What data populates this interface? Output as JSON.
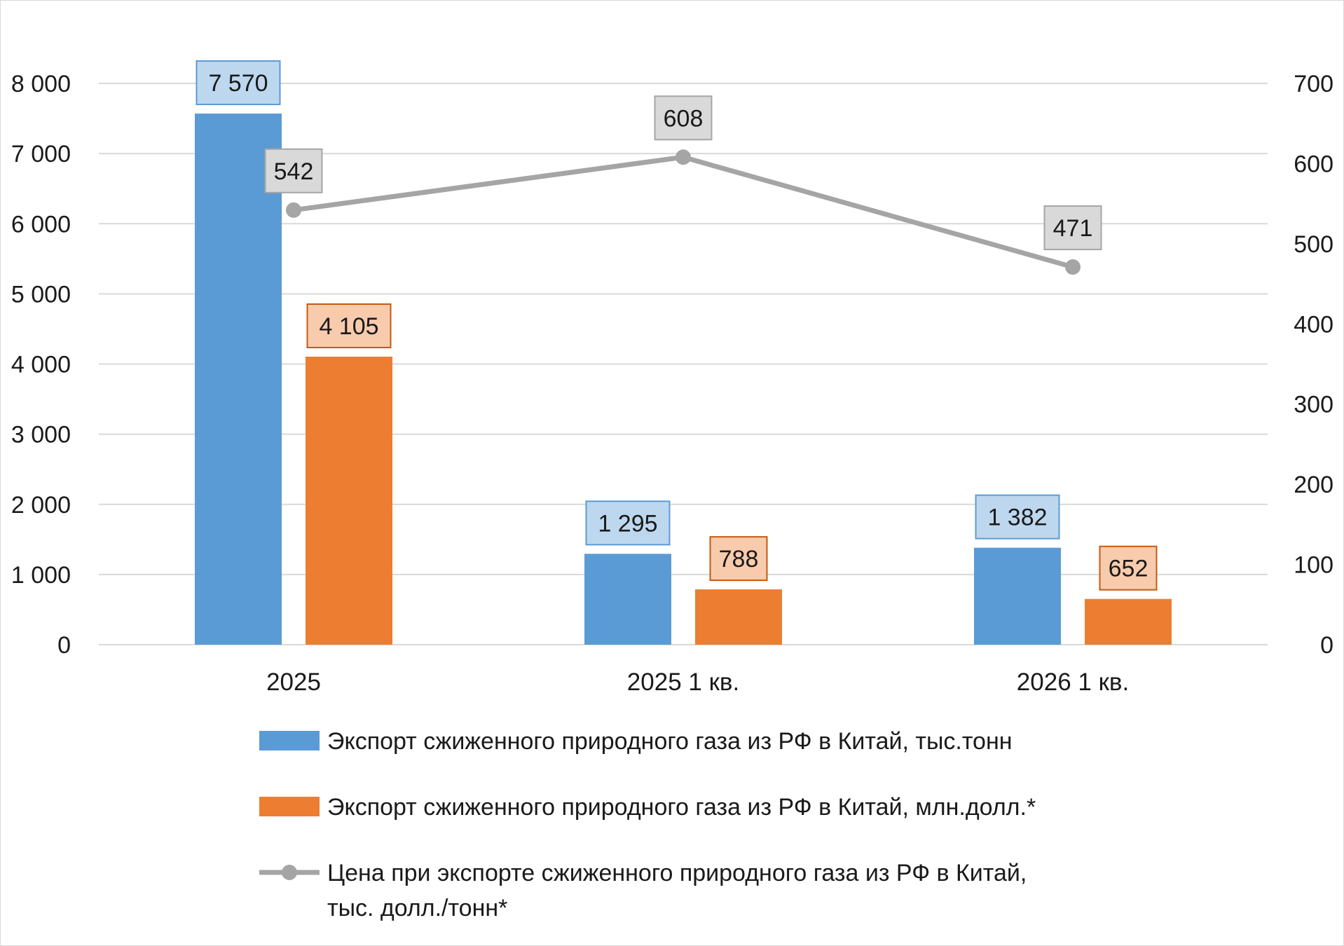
{
  "chart_data": {
    "type": "bar",
    "title": "",
    "categories": [
      "2025",
      "2025 1 кв.",
      "2026 1 кв."
    ],
    "y_left": {
      "min": 0,
      "max": 8000,
      "step": 1000,
      "ticks": [
        "0",
        "1 000",
        "2 000",
        "3 000",
        "4 000",
        "5 000",
        "6 000",
        "7 000",
        "8 000"
      ]
    },
    "y_right": {
      "min": 0,
      "max": 700,
      "step": 100,
      "ticks": [
        "0",
        "100",
        "200",
        "300",
        "400",
        "500",
        "600",
        "700"
      ]
    },
    "grid": true,
    "legend_position": "bottom",
    "series": [
      {
        "name": "Экспорт сжиженного природного газа из РФ в Китай, тыс.тонн",
        "type": "bar",
        "axis": "left",
        "color": "#5B9BD5",
        "label_fill": "#BDD7EE",
        "label_border": "#5B9BD5",
        "values": [
          7570,
          1295,
          1382
        ],
        "labels": [
          "7 570",
          "1 295",
          "1 382"
        ]
      },
      {
        "name": "Экспорт сжиженного природного газа из РФ в Китай, млн.долл.*",
        "type": "bar",
        "axis": "left",
        "color": "#ED7D31",
        "label_fill": "#F8CBAD",
        "label_border": "#C55A11",
        "values": [
          4105,
          788,
          652
        ],
        "labels": [
          "4 105",
          "788",
          "652"
        ]
      },
      {
        "name": "Цена при экспорте сжиженного природного газа из РФ в Китай, тыс. долл./тонн*",
        "name_lines": [
          "Цена при экспорте сжиженного природного газа из РФ в Китай,",
          "тыс. долл./тонн*"
        ],
        "type": "line",
        "axis": "right",
        "color": "#A5A5A5",
        "label_fill": "#D9D9D9",
        "label_border": "#A5A5A5",
        "values": [
          542,
          608,
          471
        ],
        "labels": [
          "542",
          "608",
          "471"
        ]
      }
    ],
    "colors": {
      "grid": "#D9D9D9",
      "text": "#1A1A1A"
    }
  }
}
